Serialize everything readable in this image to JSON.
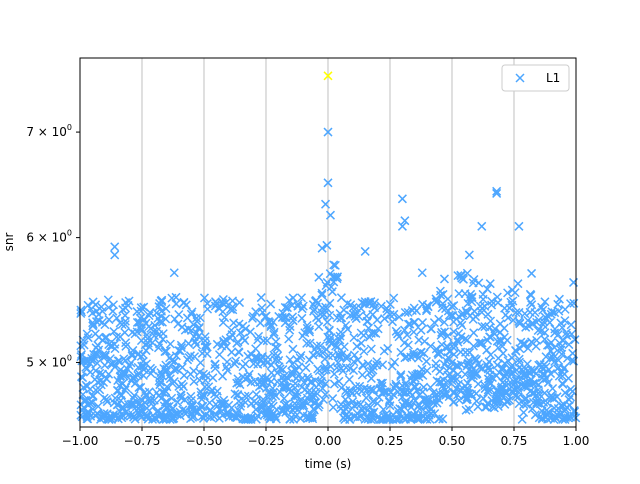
{
  "chart_data": {
    "type": "scatter",
    "title": "",
    "xlabel": "time (s)",
    "ylabel": "snr",
    "xlim": [
      -1.0,
      1.0
    ],
    "ylim": [
      4.55,
      7.8
    ],
    "yscale": "log",
    "grid": "x-axis vertical lines",
    "legend_position": "top-right",
    "x_ticks": [
      {
        "value": -1.0,
        "label": "−1.00"
      },
      {
        "value": -0.75,
        "label": "−0.75"
      },
      {
        "value": -0.5,
        "label": "−0.50"
      },
      {
        "value": -0.25,
        "label": "−0.25"
      },
      {
        "value": 0.0,
        "label": "0.00"
      },
      {
        "value": 0.25,
        "label": "0.25"
      },
      {
        "value": 0.5,
        "label": "0.50"
      },
      {
        "value": 0.75,
        "label": "0.75"
      },
      {
        "value": 1.0,
        "label": "1.00"
      }
    ],
    "y_ticks": [
      {
        "value": 5,
        "base": "5",
        "rest": " × 10",
        "exp": "0"
      },
      {
        "value": 6,
        "base": "6",
        "rest": " × 10",
        "exp": "0"
      },
      {
        "value": 7,
        "base": "7",
        "rest": " × 10",
        "exp": "0"
      }
    ],
    "series": [
      {
        "name": "L1",
        "color": "#4da6ff",
        "marker": "x",
        "description": "dense cloud of triggers mostly between snr 4.6 and 5.6, spike near t=0",
        "highlights": [
          {
            "x": 0.0,
            "y": 7.0
          },
          {
            "x": 0.0,
            "y": 6.5
          },
          {
            "x": -0.01,
            "y": 6.3
          },
          {
            "x": 0.01,
            "y": 6.2
          },
          {
            "x": -0.86,
            "y": 5.92
          },
          {
            "x": -0.86,
            "y": 5.85
          },
          {
            "x": -0.62,
            "y": 5.7
          },
          {
            "x": 0.15,
            "y": 5.88
          },
          {
            "x": 0.3,
            "y": 6.35
          },
          {
            "x": 0.31,
            "y": 6.15
          },
          {
            "x": 0.3,
            "y": 6.1
          },
          {
            "x": 0.62,
            "y": 6.1
          },
          {
            "x": 0.68,
            "y": 6.42
          },
          {
            "x": 0.68,
            "y": 6.4
          },
          {
            "x": 0.77,
            "y": 6.1
          },
          {
            "x": 0.57,
            "y": 5.85
          },
          {
            "x": 0.38,
            "y": 5.7
          },
          {
            "x": 0.99,
            "y": 5.62
          }
        ]
      }
    ],
    "peak": {
      "x": 0.0,
      "y": 7.6,
      "color": "#ffff00"
    },
    "legend": [
      {
        "label": "L1",
        "color": "#4da6ff",
        "marker": "x"
      }
    ]
  }
}
